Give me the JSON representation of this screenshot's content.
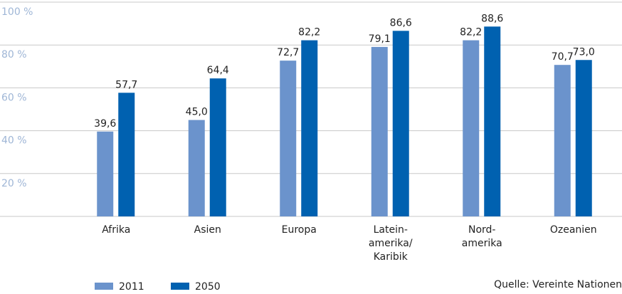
{
  "chart_data": {
    "type": "bar",
    "categories": [
      "Afrika",
      "Asien",
      "Europa",
      "Latein-\namerika/\nKaribik",
      "Nord-\namerika",
      "Ozeanien"
    ],
    "series": [
      {
        "name": "2011",
        "color": "#6b93cc",
        "values": [
          39.6,
          45.0,
          72.7,
          79.1,
          82.2,
          70.7
        ],
        "value_labels": [
          "39,6",
          "45,0",
          "72,7",
          "79,1",
          "82,2",
          "70,7"
        ]
      },
      {
        "name": "2050",
        "color": "#0061b0",
        "values": [
          57.7,
          64.4,
          82.2,
          86.6,
          88.6,
          73.0
        ],
        "value_labels": [
          "57,7",
          "64,4",
          "82,2",
          "86,6",
          "88,6",
          "73,0"
        ]
      }
    ],
    "ylim": [
      0,
      100
    ],
    "yticks": [
      {
        "value": 20,
        "label": "20 %"
      },
      {
        "value": 40,
        "label": "40 %"
      },
      {
        "value": 60,
        "label": "60 %"
      },
      {
        "value": 80,
        "label": "80 %"
      },
      {
        "value": 100,
        "label": "100 %"
      }
    ],
    "grid": true,
    "source": "Quelle: Vereinte Nationen"
  }
}
